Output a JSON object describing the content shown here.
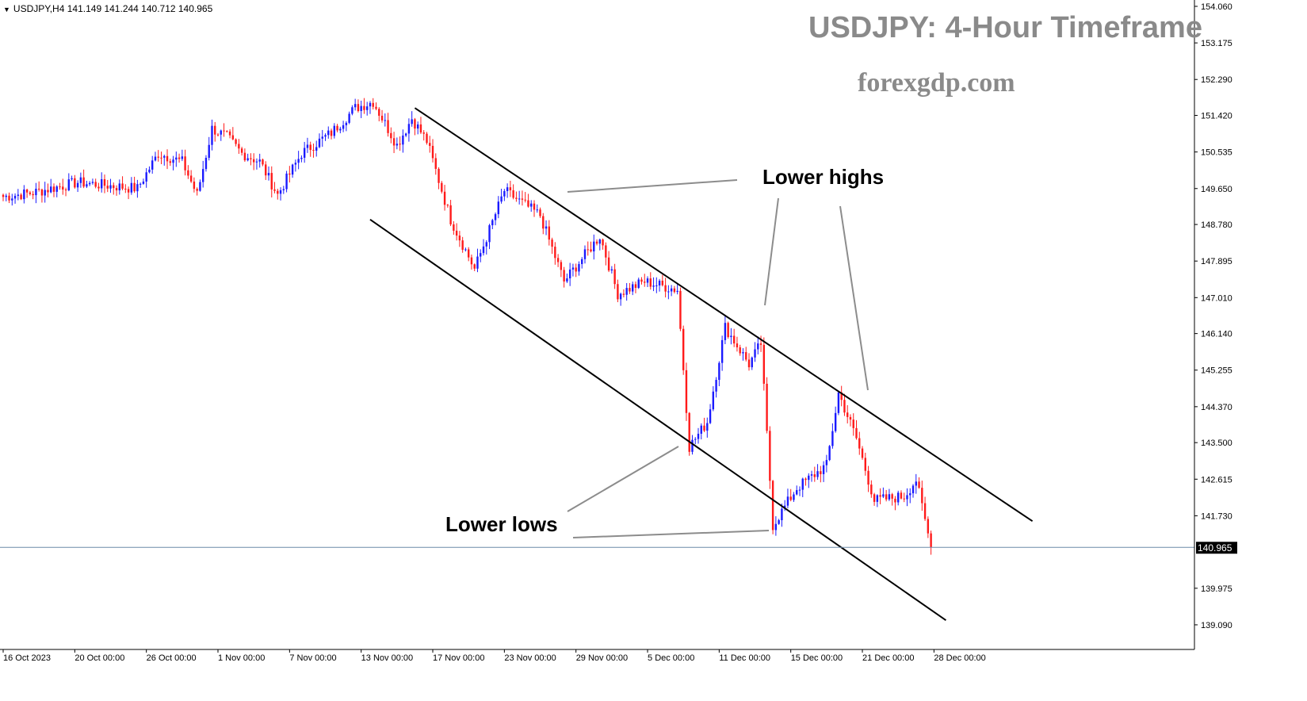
{
  "header": {
    "symbol": "USDJPY,H4",
    "ohlc": "141.149 141.244 140.712 140.965"
  },
  "watermark": {
    "title": "USDJPY: 4-Hour Timeframe",
    "site": "forexgdp.com"
  },
  "annotations": {
    "lower_highs": "Lower highs",
    "lower_lows": "Lower lows"
  },
  "colors": {
    "bull": "#1a1aff",
    "bear": "#ff1a1a",
    "trendline": "#000000",
    "pointer": "#8c8c8c",
    "price_line": "#6c8aa8",
    "axis": "#000000"
  },
  "chart_data": {
    "type": "candlestick",
    "instrument": "USDJPY",
    "timeframe": "H4",
    "current_price": 140.965,
    "current_price_label": "140.965",
    "ylim": [
      138.9,
      154.1
    ],
    "y_ticks": [
      154.06,
      153.175,
      152.29,
      151.42,
      150.535,
      149.65,
      148.78,
      147.895,
      147.01,
      146.14,
      145.255,
      144.37,
      143.5,
      142.615,
      141.73,
      139.975,
      139.09
    ],
    "y_tick_labels": [
      "154.060",
      "153.175",
      "152.290",
      "151.420",
      "150.535",
      "149.650",
      "148.780",
      "147.895",
      "147.010",
      "146.140",
      "145.255",
      "144.370",
      "143.500",
      "142.615",
      "141.730",
      "139.975",
      "139.090"
    ],
    "x_tick_labels": [
      "16 Oct 2023",
      "20 Oct 00:00",
      "26 Oct 00:00",
      "1 Nov 00:00",
      "7 Nov 00:00",
      "13 Nov 00:00",
      "17 Nov 00:00",
      "23 Nov 00:00",
      "29 Nov 00:00",
      "5 Dec 00:00",
      "11 Dec 00:00",
      "15 Dec 00:00",
      "21 Dec 00:00",
      "28 Dec 00:00"
    ],
    "x_tick_bars": [
      0,
      24,
      48,
      72,
      96,
      120,
      144,
      168,
      192,
      216,
      240,
      264,
      288,
      312
    ],
    "bars_total": 330,
    "price_anchors": [
      [
        0,
        149.45
      ],
      [
        10,
        149.55
      ],
      [
        25,
        149.8
      ],
      [
        45,
        149.65
      ],
      [
        52,
        150.5
      ],
      [
        60,
        150.3
      ],
      [
        65,
        149.5
      ],
      [
        70,
        151.1
      ],
      [
        75,
        150.9
      ],
      [
        80,
        150.5
      ],
      [
        86,
        150.3
      ],
      [
        92,
        149.5
      ],
      [
        100,
        150.5
      ],
      [
        110,
        151.0
      ],
      [
        118,
        151.6
      ],
      [
        124,
        151.75
      ],
      [
        132,
        150.7
      ],
      [
        137,
        151.35
      ],
      [
        142,
        150.8
      ],
      [
        150,
        148.9
      ],
      [
        158,
        147.7
      ],
      [
        168,
        149.6
      ],
      [
        180,
        149.0
      ],
      [
        188,
        147.4
      ],
      [
        200,
        148.5
      ],
      [
        206,
        147.1
      ],
      [
        215,
        147.4
      ],
      [
        226,
        147.2
      ],
      [
        230,
        143.4
      ],
      [
        236,
        144.0
      ],
      [
        242,
        146.3
      ],
      [
        250,
        145.4
      ],
      [
        254,
        145.9
      ],
      [
        258,
        141.5
      ],
      [
        266,
        142.4
      ],
      [
        276,
        142.95
      ],
      [
        280,
        144.7
      ],
      [
        286,
        143.6
      ],
      [
        292,
        142.1
      ],
      [
        302,
        142.2
      ],
      [
        306,
        142.6
      ],
      [
        311,
        140.965
      ]
    ],
    "trend_channel": {
      "upper": [
        [
          138,
          151.6
        ],
        [
          345,
          141.6
        ]
      ],
      "lower": [
        [
          123,
          148.9
        ],
        [
          316,
          139.2
        ]
      ]
    }
  }
}
